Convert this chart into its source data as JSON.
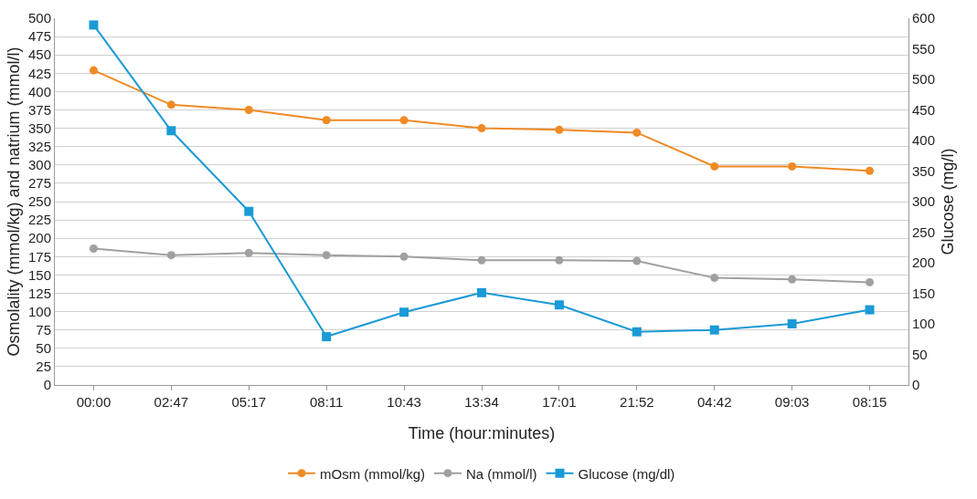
{
  "chart_data": {
    "type": "line",
    "xlabel": "Time (hour:minutes)",
    "ylabel": "Osmolality (mmol/kg) and natrium (mmol/l)",
    "y2label": "Glucose (mg/l)",
    "categories": [
      "00:00",
      "02:47",
      "05:17",
      "08:11",
      "10:43",
      "13:34",
      "17:01",
      "21:52",
      "04:42",
      "09:03",
      "08:15"
    ],
    "series": [
      {
        "name": "mOsm (mmol/kg)",
        "color": "#f08a24",
        "marker": "circle",
        "values": [
          429,
          382,
          375,
          361,
          361,
          350,
          348,
          344,
          298,
          298,
          292
        ]
      },
      {
        "name": "Na (mmol/l)",
        "color": "#a0a0a0",
        "marker": "circle",
        "values": [
          186,
          177,
          180,
          177,
          175,
          170,
          170,
          169,
          146,
          144,
          140
        ]
      },
      {
        "name": "Glucose (mg/dl)",
        "color": "#1a9ad6",
        "marker": "square",
        "axis": "y2",
        "values": [
          589,
          416,
          284,
          79,
          119,
          151,
          131,
          87,
          90,
          100,
          123
        ]
      }
    ],
    "ylim": [
      0,
      500
    ],
    "yticks": [
      0,
      25,
      50,
      75,
      100,
      125,
      150,
      175,
      200,
      225,
      250,
      275,
      300,
      325,
      350,
      375,
      400,
      425,
      450,
      475,
      500
    ],
    "y2lim": [
      0,
      600
    ],
    "y2ticks": [
      0,
      50,
      100,
      150,
      200,
      250,
      300,
      350,
      400,
      450,
      500,
      550,
      600
    ],
    "grid": "y",
    "legend": "bottom",
    "line_style": "solid"
  }
}
